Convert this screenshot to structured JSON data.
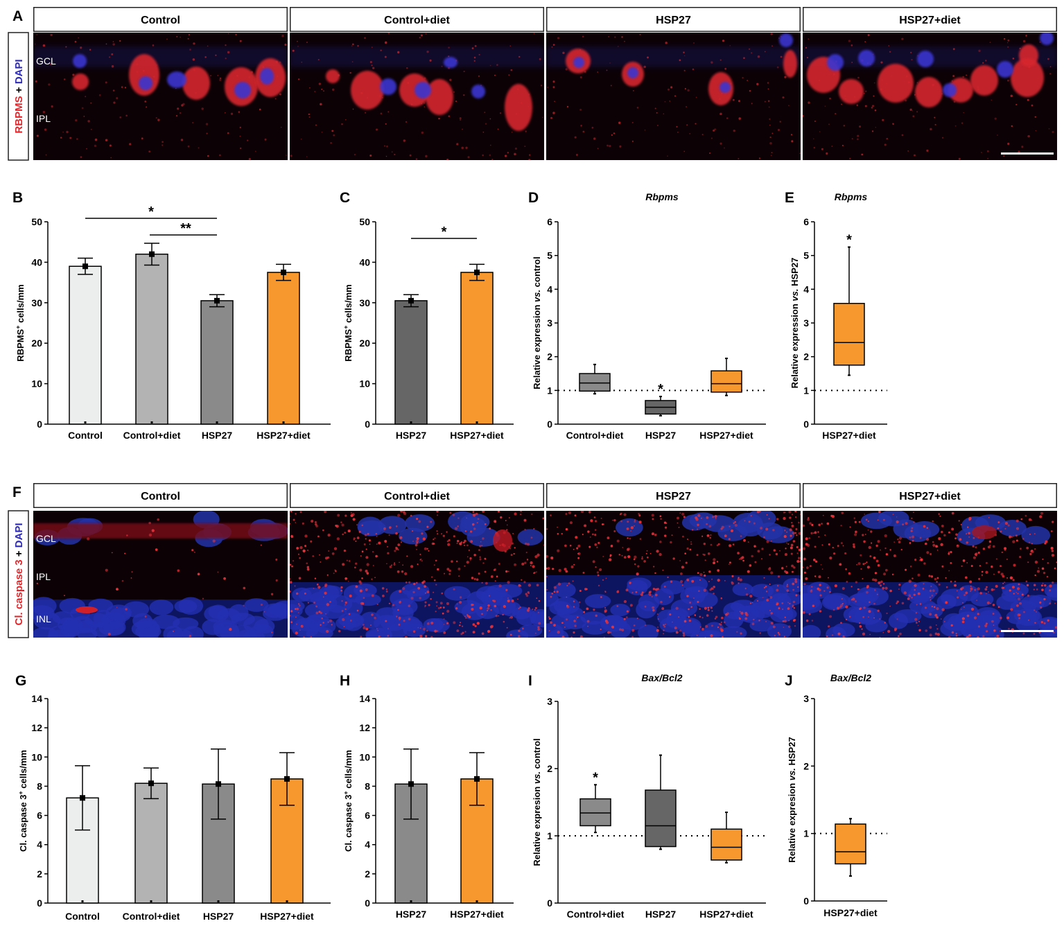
{
  "micro_panels": [
    {
      "letter": "A",
      "stain_red": "RBPMS",
      "stain_sep": " + ",
      "stain_blue": "DAPI",
      "layers": [
        "GCL",
        "IPL"
      ],
      "conditions": [
        "Control",
        "Control+diet",
        "HSP27",
        "HSP27+diet"
      ],
      "scale_bar": true
    },
    {
      "letter": "F",
      "stain_red": "Cl. caspase 3",
      "stain_sep": " + ",
      "stain_blue": "DAPI",
      "layers": [
        "GCL",
        "IPL",
        "INL"
      ],
      "conditions": [
        "Control",
        "Control+diet",
        "HSP27",
        "HSP27+diet"
      ],
      "scale_bar": true
    }
  ],
  "colors": {
    "control": "#eceeed",
    "control_diet": "#b3b3b3",
    "hsp27": "#8a8a8a",
    "hsp27_dark": "#666666",
    "hsp27_diet": "#f7982f",
    "stain_red": "#e0262b",
    "stain_blue": "#2d2ab4"
  },
  "chart_data": [
    {
      "letter": "B",
      "type": "bar",
      "categories": [
        "Control",
        "Control+diet",
        "HSP27",
        "HSP27+diet"
      ],
      "values": [
        39,
        42,
        30.5,
        37.5
      ],
      "errors": [
        2,
        2.7,
        1.5,
        2
      ],
      "ylim": [
        0,
        50
      ],
      "yticks": [
        0,
        10,
        20,
        30,
        40,
        50
      ],
      "ylabel": "RBPMS",
      "ylabel_sup": "+",
      "ylabel_rest": " cells/mm",
      "significance": [
        {
          "from": 0,
          "to": 2,
          "label": "*"
        },
        {
          "from": 1,
          "to": 2,
          "label": "**"
        }
      ]
    },
    {
      "letter": "C",
      "type": "bar",
      "categories": [
        "HSP27",
        "HSP27+diet"
      ],
      "values": [
        30.5,
        37.5
      ],
      "errors": [
        1.5,
        2
      ],
      "ylim": [
        0,
        50
      ],
      "yticks": [
        0,
        10,
        20,
        30,
        40,
        50
      ],
      "ylabel": "RBPMS",
      "ylabel_sup": "+",
      "ylabel_rest": " cells/mm",
      "significance": [
        {
          "from": 0,
          "to": 1,
          "label": "*"
        }
      ]
    },
    {
      "letter": "D",
      "type": "box",
      "title": "Rbpms",
      "categories": [
        "Control+diet",
        "HSP27",
        "HSP27+diet"
      ],
      "boxes": [
        {
          "min": 0.9,
          "q1": 0.98,
          "median": 1.22,
          "q3": 1.5,
          "max": 1.77
        },
        {
          "min": 0.25,
          "q1": 0.3,
          "median": 0.5,
          "q3": 0.7,
          "max": 0.82
        },
        {
          "min": 0.85,
          "q1": 0.95,
          "median": 1.2,
          "q3": 1.58,
          "max": 1.95
        }
      ],
      "ylim": [
        0,
        6
      ],
      "yticks": [
        0,
        1,
        2,
        3,
        4,
        5,
        6
      ],
      "ylabel": "Relative expression ",
      "ylabel_vs": "vs.",
      "ylabel_rest": " control",
      "reference": 1,
      "stars": [
        "",
        "*",
        ""
      ]
    },
    {
      "letter": "E",
      "type": "box",
      "title": "Rbpms",
      "categories": [
        "HSP27+diet"
      ],
      "boxes": [
        {
          "min": 1.45,
          "q1": 1.75,
          "median": 2.42,
          "q3": 3.58,
          "max": 5.25
        }
      ],
      "ylim": [
        0,
        6
      ],
      "yticks": [
        0,
        1,
        2,
        3,
        4,
        5,
        6
      ],
      "ylabel": "Relative expression ",
      "ylabel_vs": "vs.",
      "ylabel_rest": " HSP27",
      "reference": 1,
      "stars": [
        "*"
      ]
    },
    {
      "letter": "G",
      "type": "bar",
      "categories": [
        "Control",
        "Control+diet",
        "HSP27",
        "HSP27+diet"
      ],
      "values": [
        7.2,
        8.2,
        8.15,
        8.5
      ],
      "errors": [
        2.2,
        1.05,
        2.4,
        1.8
      ],
      "ylim": [
        0,
        14
      ],
      "yticks": [
        0,
        2,
        4,
        6,
        8,
        10,
        12,
        14
      ],
      "ylabel": "Cl. caspase 3",
      "ylabel_sup": "+",
      "ylabel_rest": " cells/mm",
      "significance": []
    },
    {
      "letter": "H",
      "type": "bar",
      "categories": [
        "HSP27",
        "HSP27+diet"
      ],
      "values": [
        8.15,
        8.5
      ],
      "errors": [
        2.4,
        1.8
      ],
      "ylim": [
        0,
        14
      ],
      "yticks": [
        0,
        2,
        4,
        6,
        8,
        10,
        12,
        14
      ],
      "ylabel": "Cl. caspase 3",
      "ylabel_sup": "+",
      "ylabel_rest": " cells/mm",
      "significance": []
    },
    {
      "letter": "I",
      "type": "box",
      "title": "Bax/Bcl2",
      "categories": [
        "Control+diet",
        "HSP27",
        "HSP27+diet"
      ],
      "boxes": [
        {
          "min": 1.05,
          "q1": 1.15,
          "median": 1.34,
          "q3": 1.55,
          "max": 1.76
        },
        {
          "min": 0.8,
          "q1": 0.84,
          "median": 1.15,
          "q3": 1.68,
          "max": 2.2
        },
        {
          "min": 0.6,
          "q1": 0.64,
          "median": 0.83,
          "q3": 1.1,
          "max": 1.35
        }
      ],
      "ylim": [
        0,
        3
      ],
      "yticks": [
        0,
        1,
        2,
        3
      ],
      "ylabel": "Relative expresion ",
      "ylabel_vs": "vs.",
      "ylabel_rest": " control",
      "reference": 1,
      "stars": [
        "*",
        "",
        ""
      ]
    },
    {
      "letter": "J",
      "type": "box",
      "title": "Bax/Bcl2",
      "categories": [
        "HSP27+diet"
      ],
      "boxes": [
        {
          "min": 0.37,
          "q1": 0.55,
          "median": 0.73,
          "q3": 1.14,
          "max": 1.22
        }
      ],
      "ylim": [
        0,
        3
      ],
      "yticks": [
        0,
        1,
        2,
        3
      ],
      "ylabel": "Relative expresion ",
      "ylabel_vs": "vs.",
      "ylabel_rest": " HSP27",
      "reference": 1,
      "stars": [
        ""
      ]
    }
  ]
}
